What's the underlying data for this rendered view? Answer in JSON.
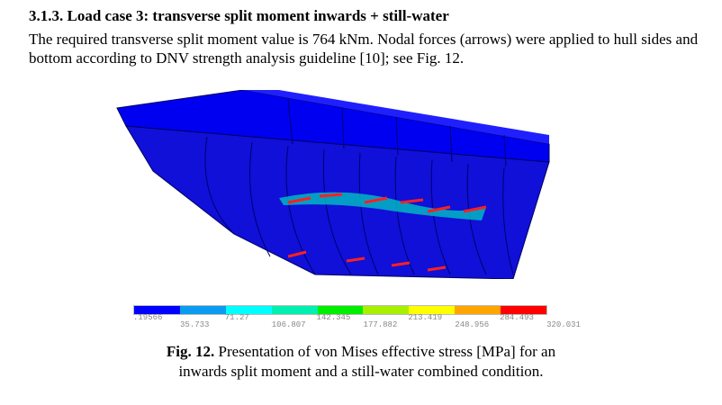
{
  "section": {
    "heading": "3.1.3. Load case 3: transverse split moment inwards + still-water",
    "paragraph": "The required transverse split moment value is 764 kNm. Nodal forces (arrows) were applied to hull sides and bottom according to DNV strength analysis guideline [10]; see Fig. 12."
  },
  "figure": {
    "legend": {
      "colors": [
        "#0000ff",
        "#0a9cf0",
        "#00ffff",
        "#00f0b0",
        "#00ee00",
        "#a8f000",
        "#ffff00",
        "#ffa500",
        "#ff0000"
      ],
      "upper_ticks": [
        ".19566",
        "71.27",
        "142.345",
        "213.419",
        "284.493"
      ],
      "lower_ticks": [
        "35.733",
        "106.807",
        "177.882",
        "248.956",
        "320.031"
      ]
    },
    "caption_label": "Fig. 12.",
    "caption_text": " Presentation of von Mises effective stress [MPa] for an",
    "caption_line2": "inwards split moment and a still-water combined condition."
  }
}
